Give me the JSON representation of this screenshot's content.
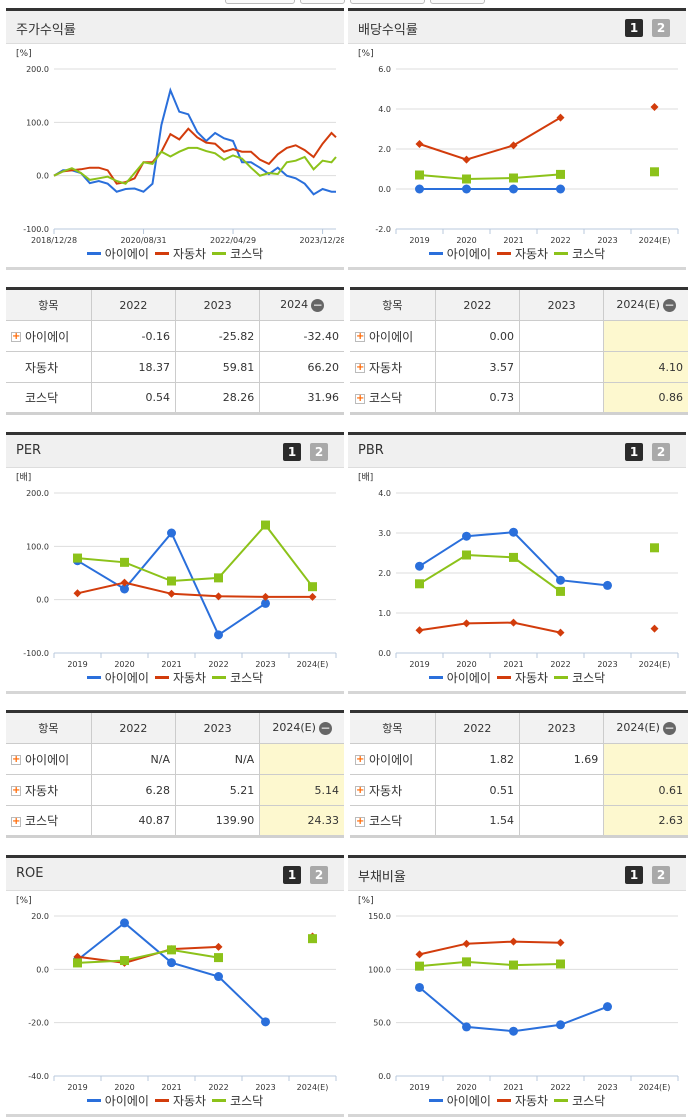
{
  "legend": [
    "아이에이",
    "자동차",
    "코스닥"
  ],
  "colors": {
    "s0": "#2a6fdb",
    "s1": "#d23c0c",
    "s2": "#8cc21a"
  },
  "badges": [
    "1",
    "2"
  ],
  "panels": [
    {
      "title": "주가수익률",
      "unit": "[%]"
    },
    {
      "title": "배당수익률",
      "unit": "[%]"
    },
    {
      "title": "PER",
      "unit": "[배]"
    },
    {
      "title": "PBR",
      "unit": "[배]"
    },
    {
      "title": "ROE",
      "unit": "[%]"
    },
    {
      "title": "부채비율",
      "unit": "[%]"
    }
  ],
  "tables": [
    {
      "headers": [
        "항목",
        "2022",
        "2023",
        "2024"
      ],
      "rows": [
        [
          "아이에이",
          "-0.16",
          "-25.82",
          "-32.40"
        ],
        [
          "자동차",
          "18.37",
          "59.81",
          "66.20"
        ],
        [
          "코스닥",
          "0.54",
          "28.26",
          "31.96"
        ]
      ]
    },
    {
      "headers": [
        "항목",
        "2022",
        "2023",
        "2024(E)"
      ],
      "rows": [
        [
          "아이에이",
          "0.00",
          "",
          ""
        ],
        [
          "자동차",
          "3.57",
          "",
          "4.10"
        ],
        [
          "코스닥",
          "0.73",
          "",
          "0.86"
        ]
      ]
    },
    {
      "headers": [
        "항목",
        "2022",
        "2023",
        "2024(E)"
      ],
      "rows": [
        [
          "아이에이",
          "N/A",
          "N/A",
          ""
        ],
        [
          "자동차",
          "6.28",
          "5.21",
          "5.14"
        ],
        [
          "코스닥",
          "40.87",
          "139.90",
          "24.33"
        ]
      ]
    },
    {
      "headers": [
        "항목",
        "2022",
        "2023",
        "2024(E)"
      ],
      "rows": [
        [
          "아이에이",
          "1.82",
          "1.69",
          ""
        ],
        [
          "자동차",
          "0.51",
          "",
          "0.61"
        ],
        [
          "코스닥",
          "1.54",
          "",
          "2.63"
        ]
      ]
    }
  ],
  "chart_data": [
    {
      "type": "line",
      "title": "주가수익률",
      "ylabel": "[%]",
      "ylim": [
        -100,
        200
      ],
      "yticks": [
        "200.0",
        "100.0",
        "0.0",
        "-100.0"
      ],
      "grid": true,
      "legend": "bottom",
      "xticks": [
        "2018/12/28",
        "2020/08/31",
        "2022/04/29",
        "2023/12/28"
      ],
      "xlim": [
        "2018-12",
        "2024-03"
      ],
      "x": [
        "2018-12",
        "2019-02",
        "2019-04",
        "2019-06",
        "2019-08",
        "2019-10",
        "2019-12",
        "2020-02",
        "2020-04",
        "2020-06",
        "2020-08",
        "2020-10",
        "2020-12",
        "2021-02",
        "2021-04",
        "2021-06",
        "2021-08",
        "2021-10",
        "2021-12",
        "2022-02",
        "2022-04",
        "2022-06",
        "2022-08",
        "2022-10",
        "2022-12",
        "2023-02",
        "2023-04",
        "2023-06",
        "2023-08",
        "2023-10",
        "2023-12",
        "2024-02",
        "2024-03"
      ],
      "series": [
        {
          "name": "아이에이",
          "values": [
            0,
            10,
            10,
            5,
            -14,
            -10,
            -15,
            -30,
            -25,
            -24,
            -30,
            -15,
            95,
            160,
            120,
            115,
            82,
            65,
            80,
            70,
            65,
            25,
            25,
            15,
            3,
            15,
            0,
            -5,
            -15,
            -35,
            -25,
            -30,
            -30
          ]
        },
        {
          "name": "자동차",
          "values": [
            0,
            8,
            10,
            12,
            15,
            15,
            10,
            -15,
            -12,
            -5,
            25,
            25,
            45,
            78,
            68,
            88,
            72,
            62,
            60,
            45,
            50,
            45,
            45,
            30,
            22,
            40,
            52,
            57,
            48,
            35,
            60,
            80,
            72
          ]
        },
        {
          "name": "코스닥",
          "values": [
            0,
            8,
            14,
            5,
            -8,
            -5,
            -2,
            -10,
            -15,
            5,
            25,
            22,
            45,
            36,
            45,
            52,
            52,
            46,
            42,
            30,
            38,
            32,
            15,
            0,
            5,
            3,
            25,
            28,
            35,
            12,
            28,
            25,
            35
          ]
        }
      ]
    },
    {
      "type": "line",
      "title": "배당수익률",
      "ylabel": "[%]",
      "ylim": [
        -2,
        6
      ],
      "yticks": [
        "6.0",
        "4.0",
        "2.0",
        "0.0",
        "-2.0"
      ],
      "grid": true,
      "legend": "bottom",
      "categories": [
        "2019",
        "2020",
        "2021",
        "2022",
        "2023",
        "2024(E)"
      ],
      "series": [
        {
          "name": "아이에이",
          "values": [
            0,
            0,
            0,
            0,
            null,
            null
          ]
        },
        {
          "name": "자동차",
          "values": [
            2.25,
            1.47,
            2.18,
            3.57,
            null,
            4.1
          ]
        },
        {
          "name": "코스닥",
          "values": [
            0.7,
            0.5,
            0.55,
            0.73,
            null,
            0.86
          ]
        }
      ]
    },
    {
      "type": "line",
      "title": "PER",
      "ylabel": "[배]",
      "ylim": [
        -100,
        200
      ],
      "yticks": [
        "200.0",
        "100.0",
        "0.0",
        "-100.0"
      ],
      "grid": true,
      "legend": "bottom",
      "categories": [
        "2019",
        "2020",
        "2021",
        "2022",
        "2023",
        "2024(E)"
      ],
      "series": [
        {
          "name": "아이에이",
          "values": [
            73,
            20,
            125,
            -66,
            -7,
            null
          ]
        },
        {
          "name": "자동차",
          "values": [
            12,
            32,
            11,
            6.28,
            5.21,
            5.14
          ]
        },
        {
          "name": "코스닥",
          "values": [
            78,
            70,
            35,
            40.87,
            139.9,
            24.33
          ]
        }
      ]
    },
    {
      "type": "line",
      "title": "PBR",
      "ylabel": "[배]",
      "ylim": [
        0,
        4
      ],
      "yticks": [
        "4.0",
        "3.0",
        "2.0",
        "1.0",
        "0.0"
      ],
      "grid": true,
      "legend": "bottom",
      "categories": [
        "2019",
        "2020",
        "2021",
        "2022",
        "2023",
        "2024(E)"
      ],
      "series": [
        {
          "name": "아이에이",
          "values": [
            2.17,
            2.92,
            3.02,
            1.82,
            1.69,
            null
          ]
        },
        {
          "name": "자동차",
          "values": [
            0.57,
            0.74,
            0.76,
            0.51,
            null,
            0.61
          ]
        },
        {
          "name": "코스닥",
          "values": [
            1.73,
            2.45,
            2.39,
            1.54,
            null,
            2.63
          ]
        }
      ]
    },
    {
      "type": "line",
      "title": "ROE",
      "ylabel": "[%]",
      "ylim": [
        -40,
        20
      ],
      "yticks": [
        "20.0",
        "0.0",
        "-20.0",
        "-40.0"
      ],
      "grid": true,
      "legend": "bottom",
      "categories": [
        "2019",
        "2020",
        "2021",
        "2022",
        "2023",
        "2024(E)"
      ],
      "series": [
        {
          "name": "아이에이",
          "values": [
            3.5,
            17.4,
            2.5,
            -2.7,
            -19.7,
            null
          ]
        },
        {
          "name": "자동차",
          "values": [
            4.7,
            2.4,
            7.6,
            8.4,
            null,
            12.3
          ]
        },
        {
          "name": "코스닥",
          "values": [
            2.4,
            3.3,
            7.3,
            4.4,
            null,
            11.5
          ]
        }
      ]
    },
    {
      "type": "line",
      "title": "부채비율",
      "ylabel": "[%]",
      "ylim": [
        0,
        150
      ],
      "yticks": [
        "150.0",
        "100.0",
        "50.0",
        "0.0"
      ],
      "grid": true,
      "legend": "bottom",
      "categories": [
        "2019",
        "2020",
        "2021",
        "2022",
        "2023",
        "2024(E)"
      ],
      "series": [
        {
          "name": "아이에이",
          "values": [
            83,
            46,
            42,
            48,
            65,
            null
          ]
        },
        {
          "name": "자동차",
          "values": [
            114,
            124,
            126,
            125,
            null,
            null
          ]
        },
        {
          "name": "코스닥",
          "values": [
            103,
            107,
            104,
            105,
            null,
            null
          ]
        }
      ]
    }
  ]
}
